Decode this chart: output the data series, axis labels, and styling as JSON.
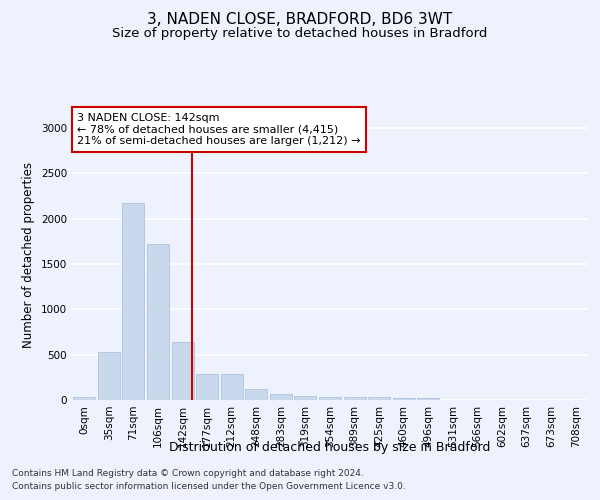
{
  "title": "3, NADEN CLOSE, BRADFORD, BD6 3WT",
  "subtitle": "Size of property relative to detached houses in Bradford",
  "xlabel": "Distribution of detached houses by size in Bradford",
  "ylabel": "Number of detached properties",
  "footer_line1": "Contains HM Land Registry data © Crown copyright and database right 2024.",
  "footer_line2": "Contains public sector information licensed under the Open Government Licence v3.0.",
  "annotation_line1": "3 NADEN CLOSE: 142sqm",
  "annotation_line2": "← 78% of detached houses are smaller (4,415)",
  "annotation_line3": "21% of semi-detached houses are larger (1,212) →",
  "bar_labels": [
    "0sqm",
    "35sqm",
    "71sqm",
    "106sqm",
    "142sqm",
    "177sqm",
    "212sqm",
    "248sqm",
    "283sqm",
    "319sqm",
    "354sqm",
    "389sqm",
    "425sqm",
    "460sqm",
    "496sqm",
    "531sqm",
    "566sqm",
    "602sqm",
    "637sqm",
    "673sqm",
    "708sqm"
  ],
  "bar_values": [
    30,
    525,
    2175,
    1720,
    635,
    285,
    285,
    120,
    70,
    45,
    30,
    30,
    30,
    25,
    20,
    0,
    0,
    0,
    0,
    0,
    0
  ],
  "bar_color": "#c8d9ee",
  "bar_edge_color": "#aabbd8",
  "vline_color": "#cc0000",
  "vline_bin": 4,
  "ylim": [
    0,
    3200
  ],
  "yticks": [
    0,
    500,
    1000,
    1500,
    2000,
    2500,
    3000
  ],
  "background_color": "#eef2fc",
  "grid_color": "#ffffff",
  "annotation_box_facecolor": "#ffffff",
  "annotation_box_edgecolor": "#cc0000",
  "title_fontsize": 11,
  "subtitle_fontsize": 9.5,
  "xlabel_fontsize": 9,
  "ylabel_fontsize": 8.5,
  "tick_fontsize": 7.5,
  "annotation_fontsize": 8,
  "footer_fontsize": 6.5
}
